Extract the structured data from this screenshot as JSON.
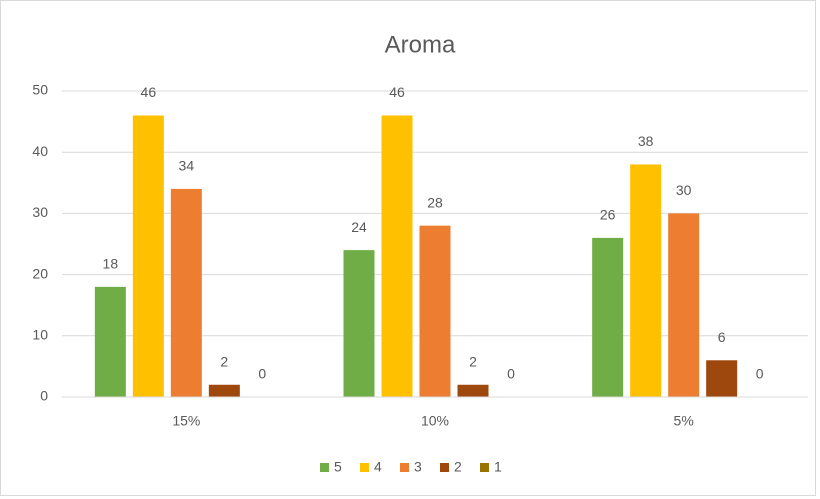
{
  "chart_data": {
    "type": "bar",
    "title": "Aroma",
    "categories": [
      "15%",
      "10%",
      "5%"
    ],
    "series": [
      {
        "name": "5",
        "color": "#70ad47",
        "values": [
          18,
          24,
          26
        ]
      },
      {
        "name": "4",
        "color": "#ffc000",
        "values": [
          46,
          46,
          38
        ]
      },
      {
        "name": "3",
        "color": "#ed7d31",
        "values": [
          34,
          28,
          30
        ]
      },
      {
        "name": "2",
        "color": "#9e480e",
        "values": [
          2,
          2,
          6
        ]
      },
      {
        "name": "1",
        "color": "#997300",
        "values": [
          0,
          0,
          0
        ]
      }
    ],
    "ylim": [
      0,
      50
    ],
    "yticks": [
      0,
      10,
      20,
      30,
      40,
      50
    ],
    "grid": true,
    "legend": "bottom"
  }
}
